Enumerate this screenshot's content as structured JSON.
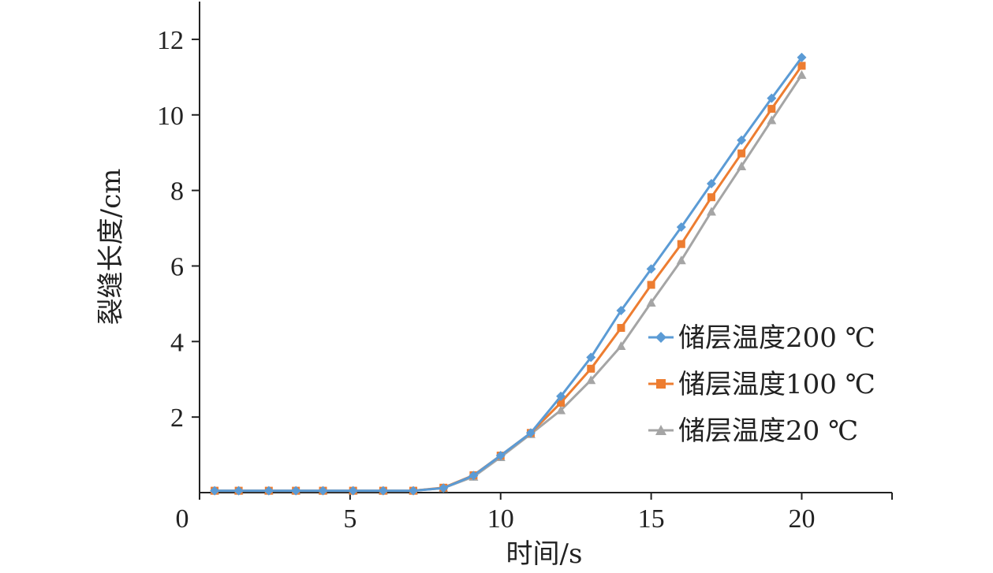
{
  "chart_data": {
    "type": "line",
    "xlabel": "时间/s",
    "ylabel": "裂缝长度/cm",
    "xlim": [
      0,
      23
    ],
    "ylim": [
      0,
      13
    ],
    "xticks": [
      0,
      5,
      10,
      15,
      20
    ],
    "xtick_labels": [
      "0",
      "5",
      "10",
      "15",
      "20"
    ],
    "yticks": [
      2,
      4,
      6,
      8,
      10,
      12
    ],
    "ytick_labels": [
      "2",
      "4",
      "6",
      "8",
      "10",
      "12"
    ],
    "grid": false,
    "legend_position": "right",
    "series": [
      {
        "name": "储层温度200 ℃",
        "color": "#5b9bd5",
        "marker": "diamond",
        "x": [
          0.5,
          1.3,
          2.3,
          3.2,
          4.1,
          5.1,
          6.1,
          7.1,
          8.1,
          9.1,
          10.0,
          11.0,
          12.0,
          13.0,
          14.0,
          15.0,
          16.0,
          17.0,
          18.0,
          19.0,
          20.0
        ],
        "y": [
          0.05,
          0.05,
          0.05,
          0.05,
          0.05,
          0.05,
          0.05,
          0.05,
          0.12,
          0.45,
          0.98,
          1.58,
          2.55,
          3.58,
          4.82,
          5.92,
          7.03,
          8.18,
          9.33,
          10.44,
          11.52
        ]
      },
      {
        "name": "储层温度100 ℃",
        "color": "#ed7d31",
        "marker": "square",
        "x": [
          0.5,
          1.3,
          2.3,
          3.2,
          4.1,
          5.1,
          6.1,
          7.1,
          8.1,
          9.1,
          10.0,
          11.0,
          12.0,
          13.0,
          14.0,
          15.0,
          16.0,
          17.0,
          18.0,
          19.0,
          20.0
        ],
        "y": [
          0.05,
          0.05,
          0.05,
          0.05,
          0.05,
          0.05,
          0.05,
          0.05,
          0.13,
          0.46,
          0.98,
          1.58,
          2.38,
          3.28,
          4.36,
          5.5,
          6.58,
          7.82,
          8.98,
          10.16,
          11.3
        ]
      },
      {
        "name": "储层温度20 ℃",
        "color": "#a5a5a5",
        "marker": "triangle",
        "x": [
          0.5,
          1.3,
          2.3,
          3.2,
          4.1,
          5.1,
          6.1,
          7.1,
          8.1,
          9.1,
          10.0,
          11.0,
          12.0,
          13.0,
          14.0,
          15.0,
          16.0,
          17.0,
          18.0,
          19.0,
          20.0
        ],
        "y": [
          0.05,
          0.05,
          0.05,
          0.05,
          0.05,
          0.05,
          0.05,
          0.05,
          0.12,
          0.42,
          0.94,
          1.55,
          2.18,
          2.98,
          3.88,
          5.03,
          6.15,
          7.44,
          8.64,
          9.86,
          11.06
        ]
      }
    ]
  }
}
